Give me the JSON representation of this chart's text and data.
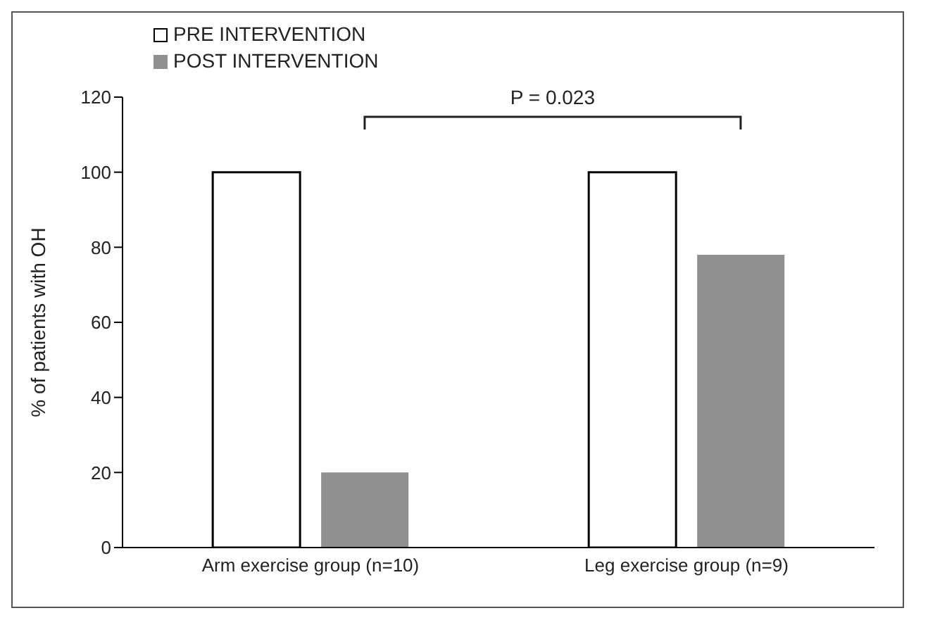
{
  "chart_data": {
    "type": "bar",
    "ylabel": "% of patients with OH",
    "categories": [
      "Arm exercise group (n=10)",
      "Leg exercise group  (n=9)"
    ],
    "series": [
      {
        "name": "PRE INTERVENTION",
        "color": "#ffffff",
        "values": [
          100,
          100
        ]
      },
      {
        "name": "POST INTERVENTION",
        "color": "#8f8f8f",
        "values": [
          20,
          78
        ]
      }
    ],
    "ylim": [
      0,
      120
    ],
    "yticks": [
      0,
      20,
      40,
      60,
      80,
      100,
      120
    ],
    "grid": false,
    "legend": "top left",
    "annotations": [
      "P = 0.023"
    ]
  }
}
